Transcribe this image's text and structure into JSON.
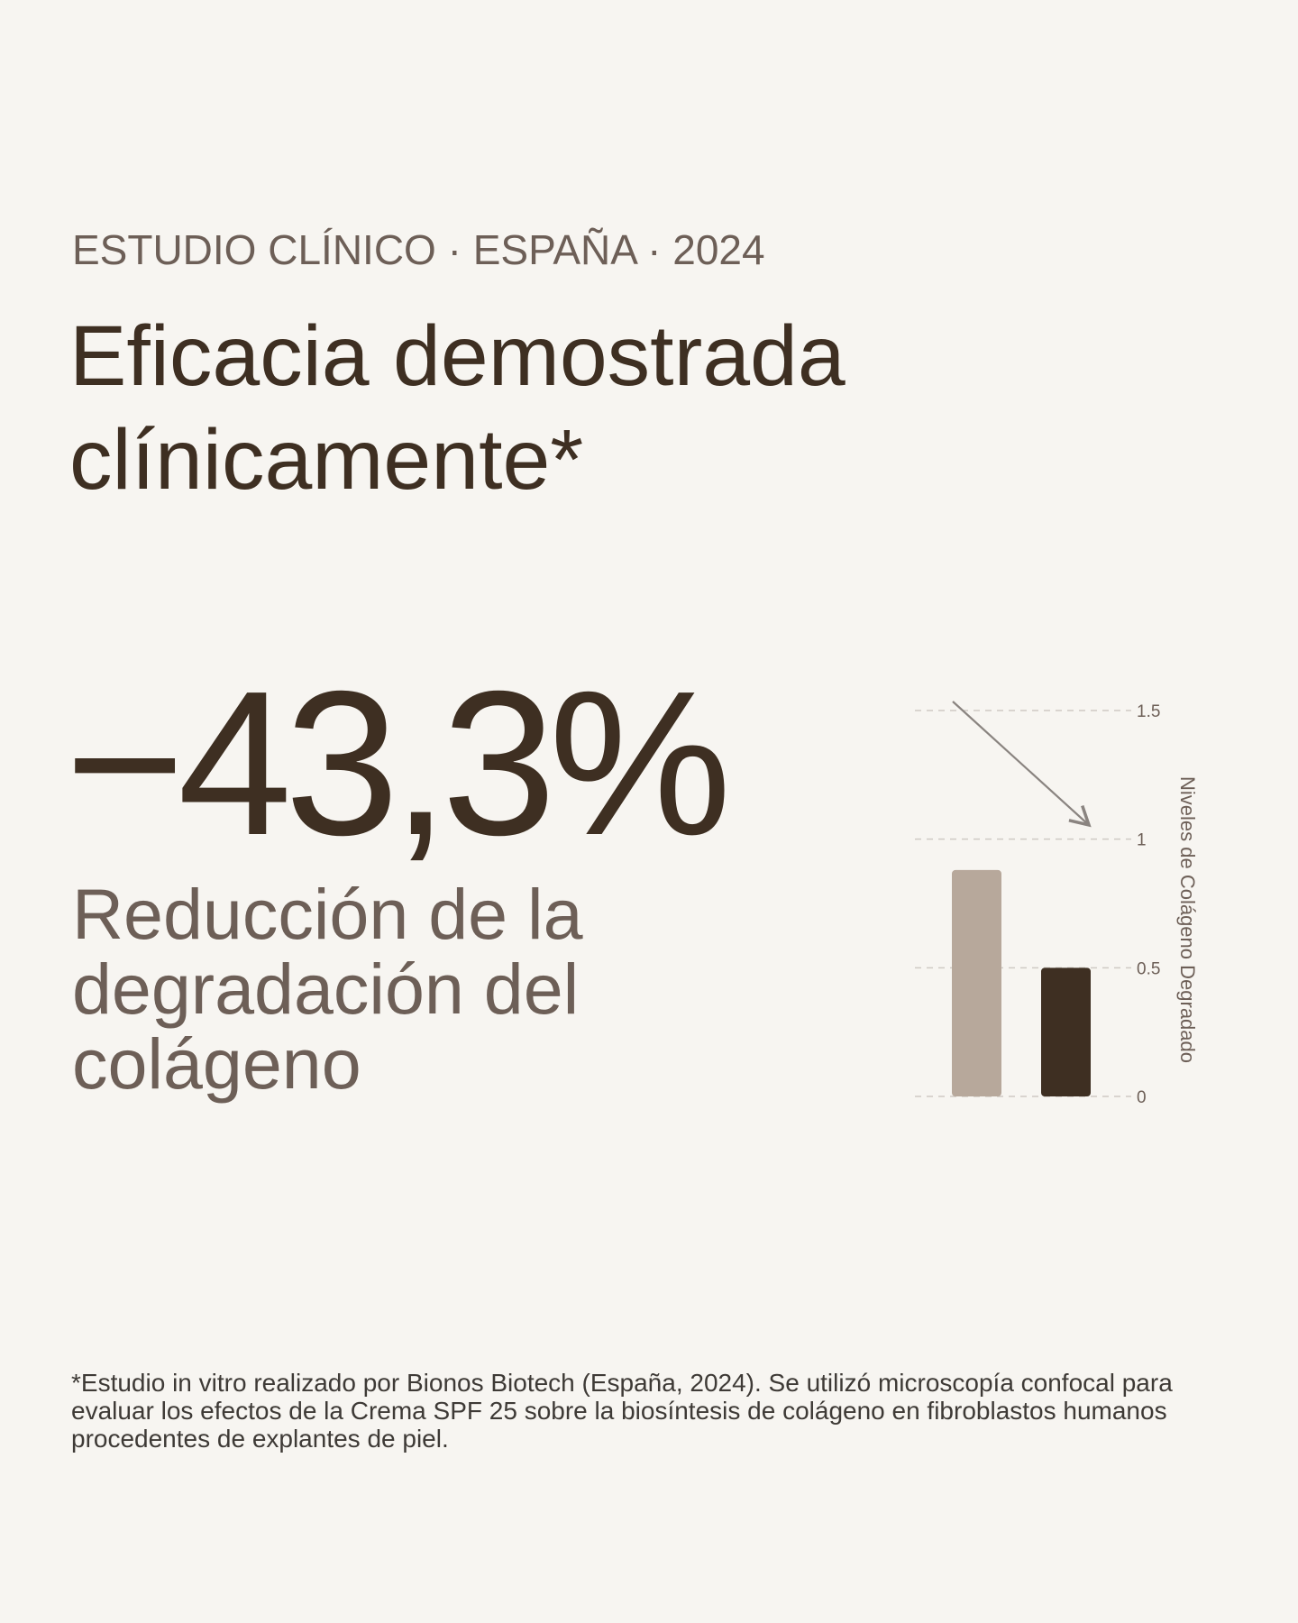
{
  "header": {
    "eyebrow": "ESTUDIO CLÍNICO · ESPAÑA · 2024",
    "title_line1": "Eficacia demostrada",
    "title_line2": "clínicamente*"
  },
  "stat": {
    "value": "−43,3%",
    "caption_line1": "Reducción de la",
    "caption_line2": "degradación del",
    "caption_line3": "colágeno"
  },
  "chart_data": {
    "type": "bar",
    "categories": [
      "",
      ""
    ],
    "values": [
      0.88,
      0.5
    ],
    "ylabel": "Niveles de Colágeno Degradado",
    "ylim": [
      0,
      1.5
    ],
    "yticks": [
      {
        "value": 0,
        "label": "0"
      },
      {
        "value": 0.5,
        "label": "0.5"
      },
      {
        "value": 1,
        "label": "1"
      },
      {
        "value": 1.5,
        "label": "1.5"
      }
    ],
    "grid": true,
    "trend_arrow": "down",
    "colors": [
      "#b7a89b",
      "#3e2f22"
    ]
  },
  "footnote": "*Estudio in vitro realizado por Bionos Biotech (España, 2024). Se utilizó microscopía confocal para evaluar los efectos de la Crema SPF 25 sobre la biosíntesis de colágeno en fibroblastos humanos procedentes de explantes de piel."
}
